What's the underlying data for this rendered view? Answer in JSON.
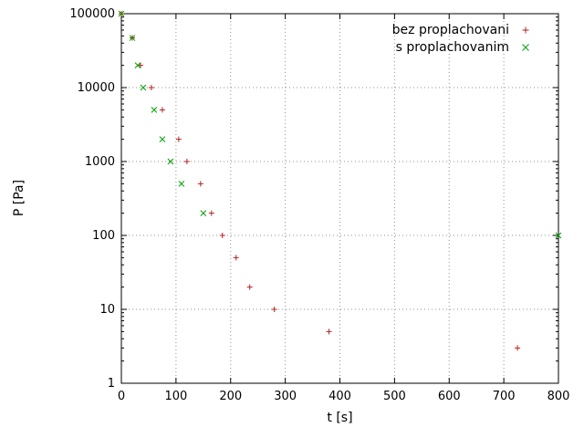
{
  "chart_data": {
    "type": "scatter",
    "title": "",
    "xlabel": "t [s]",
    "ylabel": "P [Pa]",
    "x_ticks": [
      0,
      100,
      200,
      300,
      400,
      500,
      600,
      700,
      800
    ],
    "y_ticks": [
      1,
      10,
      100,
      1000,
      10000,
      100000
    ],
    "xlim": [
      0,
      800
    ],
    "ylim": [
      1,
      100000
    ],
    "y_scale": "log10",
    "grid": true,
    "grid_color": "#909090",
    "border_color": "#000000",
    "legend_position": "top-right",
    "series": [
      {
        "name": "bez proplachovani",
        "marker": "plus",
        "color": "#b22222",
        "points": [
          [
            0,
            100000
          ],
          [
            20,
            47000
          ],
          [
            35,
            20000
          ],
          [
            55,
            10000
          ],
          [
            75,
            5000
          ],
          [
            105,
            2000
          ],
          [
            120,
            1000
          ],
          [
            145,
            500
          ],
          [
            165,
            200
          ],
          [
            185,
            100
          ],
          [
            210,
            50
          ],
          [
            235,
            20
          ],
          [
            280,
            10
          ],
          [
            380,
            5
          ],
          [
            725,
            3
          ]
        ]
      },
      {
        "name": "s proplachovanim",
        "marker": "cross",
        "color": "#00a000",
        "points": [
          [
            0,
            100000
          ],
          [
            20,
            47000
          ],
          [
            30,
            20000
          ],
          [
            40,
            10000
          ],
          [
            60,
            5000
          ],
          [
            75,
            2000
          ],
          [
            90,
            1000
          ],
          [
            110,
            500
          ],
          [
            150,
            200
          ],
          [
            800,
            100
          ]
        ]
      }
    ]
  }
}
